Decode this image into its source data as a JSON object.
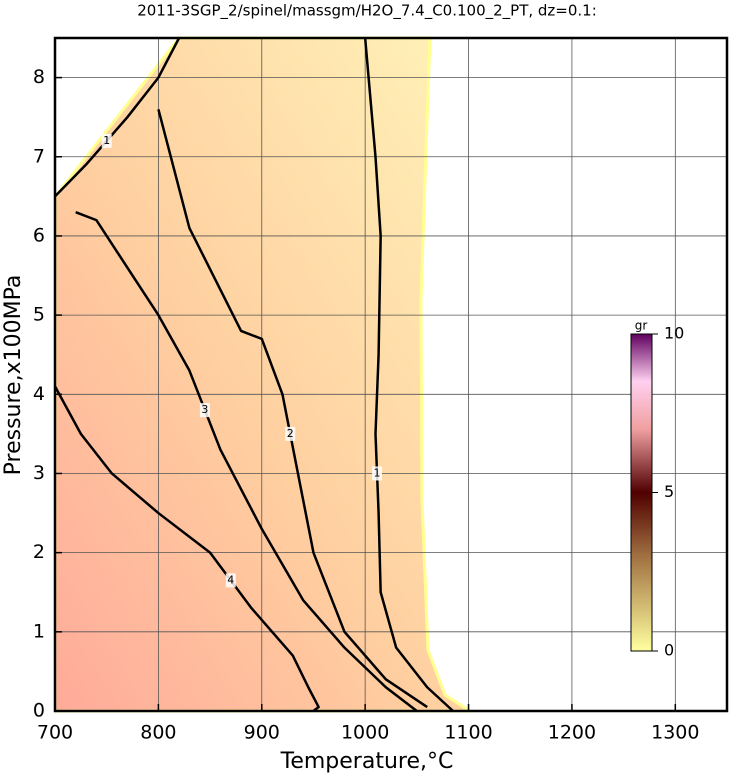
{
  "chart_data": {
    "type": "contour",
    "title": "2011-3SGP_2/spinel/massgm/H2O_7.4_C0.100_2_PT, dz=0.1:",
    "x_label": "Temperature,°C",
    "y_label": "Pressure,x100MPa",
    "xlim": [
      700,
      1350
    ],
    "ylim": [
      0,
      8.5
    ],
    "xticks": [
      700,
      800,
      900,
      1000,
      1100,
      1200,
      1300
    ],
    "yticks": [
      0,
      1,
      2,
      3,
      4,
      5,
      6,
      7,
      8
    ],
    "grid": true,
    "contours": [
      {
        "level": 1,
        "x": [
          700,
          730,
          770,
          800,
          820
        ],
        "y": [
          6.5,
          6.9,
          7.5,
          8.0,
          8.5
        ]
      },
      {
        "level": 1,
        "x": [
          1000,
          1010,
          1015,
          1013,
          1010,
          1013,
          1015,
          1030,
          1060,
          1085
        ],
        "y": [
          8.5,
          7.0,
          6.0,
          4.5,
          3.5,
          2.5,
          1.5,
          0.8,
          0.3,
          0
        ]
      },
      {
        "level": 2,
        "x": [
          800,
          830,
          880,
          900,
          920,
          935,
          950,
          980,
          1020,
          1060
        ],
        "y": [
          7.6,
          6.1,
          4.8,
          4.7,
          4.0,
          3.0,
          2.0,
          1.0,
          0.4,
          0.05
        ]
      },
      {
        "level": 3,
        "x": [
          720,
          740,
          760,
          800,
          830,
          860,
          900,
          940,
          980,
          1020,
          1050
        ],
        "y": [
          6.3,
          6.2,
          5.8,
          5.0,
          4.3,
          3.3,
          2.3,
          1.4,
          0.8,
          0.3,
          0
        ]
      },
      {
        "level": 4,
        "x": [
          700,
          725,
          755,
          800,
          850,
          890,
          930,
          945,
          955,
          950
        ],
        "y": [
          4.1,
          3.5,
          3.0,
          2.5,
          2.0,
          1.3,
          0.7,
          0.3,
          0.05,
          0
        ]
      }
    ],
    "colorbar": {
      "label": "gr",
      "lim": [
        0,
        10
      ],
      "ticks": [
        0,
        5,
        10
      ]
    }
  }
}
